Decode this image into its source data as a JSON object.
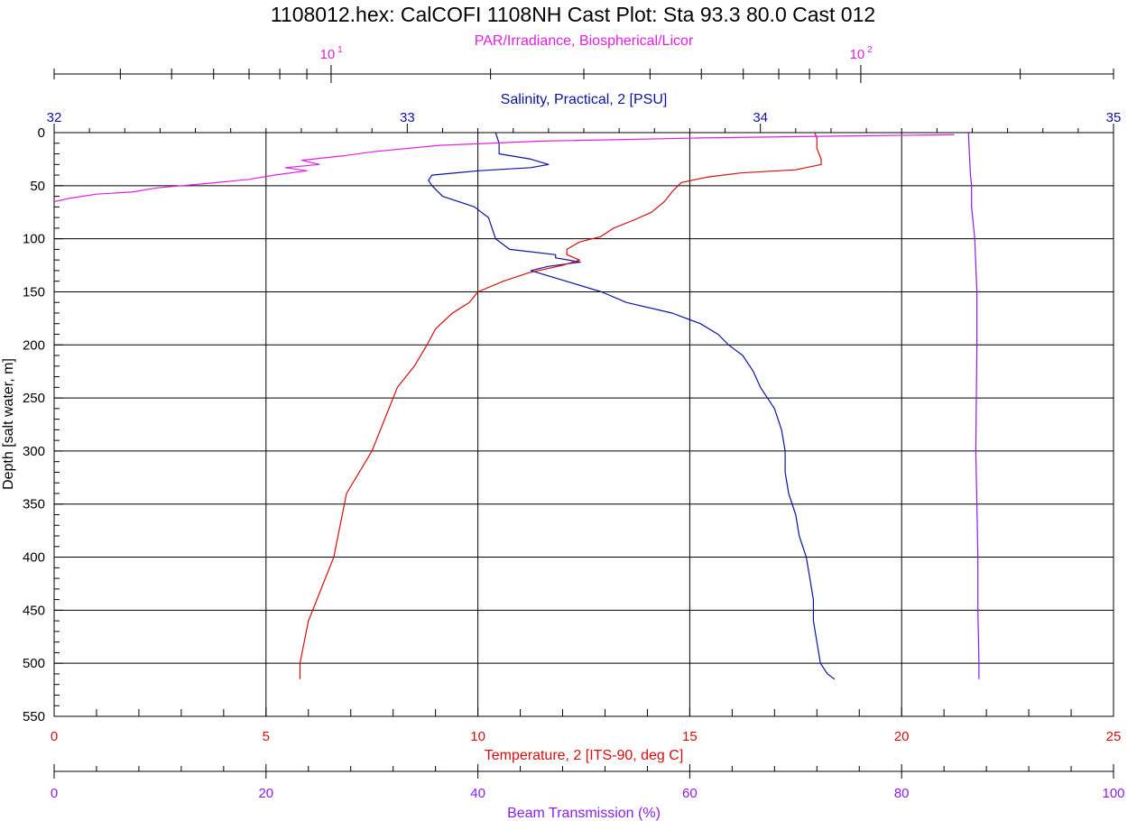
{
  "colors": {
    "black": "#000000",
    "salinity": "#0a14a0",
    "temperature": "#d40f0f",
    "par": "#e21ee2",
    "beam": "#8a1ee6"
  },
  "chart_data": {
    "type": "line",
    "title": "1108012.hex: CalCOFI 1108NH Cast Plot: Sta 93.3 80.0 Cast 012",
    "grid": true,
    "depth_axis": {
      "label": "Depth [salt water, m]",
      "range": [
        0,
        550
      ],
      "inverted": true,
      "ticks": [
        "0",
        "50",
        "100",
        "150",
        "200",
        "250",
        "300",
        "350",
        "400",
        "450",
        "500",
        "550"
      ]
    },
    "par_axis": {
      "label": "PAR/Irradiance, Biospherical/Licor",
      "scale": "log",
      "range": [
        3,
        300
      ],
      "tick_labels": [
        {
          "base": "10",
          "exp": "1",
          "value": 10
        },
        {
          "base": "10",
          "exp": "2",
          "value": 100
        }
      ]
    },
    "salinity_axis": {
      "label": "Salinity, Practical, 2 [PSU]",
      "range": [
        32,
        35
      ],
      "ticks": [
        "32",
        "33",
        "34",
        "35"
      ]
    },
    "temperature_axis": {
      "label": "Temperature, 2 [ITS-90, deg C]",
      "range": [
        0,
        25
      ],
      "ticks": [
        "0",
        "5",
        "10",
        "15",
        "20",
        "25"
      ]
    },
    "beam_axis": {
      "label": "Beam Transmission (%)",
      "range": [
        0,
        100
      ],
      "ticks": [
        "0",
        "20",
        "40",
        "60",
        "80",
        "100"
      ]
    },
    "series": [
      {
        "name": "Salinity, Practical, 2 [PSU]",
        "key": "salinity",
        "points": [
          [
            0,
            33.25
          ],
          [
            10,
            33.26
          ],
          [
            20,
            33.26
          ],
          [
            25,
            33.35
          ],
          [
            30,
            33.4
          ],
          [
            33,
            33.35
          ],
          [
            36,
            33.2
          ],
          [
            40,
            33.07
          ],
          [
            45,
            33.06
          ],
          [
            50,
            33.07
          ],
          [
            60,
            33.1
          ],
          [
            70,
            33.19
          ],
          [
            80,
            33.23
          ],
          [
            90,
            33.24
          ],
          [
            100,
            33.25
          ],
          [
            110,
            33.29
          ],
          [
            115,
            33.42
          ],
          [
            118,
            33.42
          ],
          [
            122,
            33.49
          ],
          [
            126,
            33.4
          ],
          [
            130,
            33.35
          ],
          [
            140,
            33.45
          ],
          [
            150,
            33.55
          ],
          [
            160,
            33.62
          ],
          [
            170,
            33.75
          ],
          [
            180,
            33.83
          ],
          [
            190,
            33.88
          ],
          [
            200,
            33.91
          ],
          [
            210,
            33.95
          ],
          [
            225,
            33.98
          ],
          [
            240,
            34.0
          ],
          [
            260,
            34.04
          ],
          [
            280,
            34.06
          ],
          [
            300,
            34.07
          ],
          [
            320,
            34.07
          ],
          [
            340,
            34.08
          ],
          [
            360,
            34.1
          ],
          [
            380,
            34.11
          ],
          [
            400,
            34.13
          ],
          [
            420,
            34.14
          ],
          [
            440,
            34.15
          ],
          [
            460,
            34.15
          ],
          [
            480,
            34.16
          ],
          [
            500,
            34.17
          ],
          [
            510,
            34.19
          ],
          [
            515,
            34.21
          ]
        ]
      },
      {
        "name": "Temperature, 2 [ITS-90, deg C]",
        "key": "temperature",
        "points": [
          [
            0,
            17.95
          ],
          [
            5,
            18.0
          ],
          [
            15,
            18.0
          ],
          [
            25,
            18.1
          ],
          [
            30,
            18.1
          ],
          [
            35,
            17.5
          ],
          [
            38,
            16.2
          ],
          [
            42,
            15.4
          ],
          [
            47,
            14.8
          ],
          [
            55,
            14.6
          ],
          [
            65,
            14.4
          ],
          [
            75,
            14.1
          ],
          [
            82,
            13.7
          ],
          [
            90,
            13.2
          ],
          [
            98,
            12.9
          ],
          [
            103,
            12.4
          ],
          [
            110,
            12.1
          ],
          [
            115,
            12.1
          ],
          [
            120,
            12.4
          ],
          [
            125,
            12.0
          ],
          [
            132,
            11.2
          ],
          [
            140,
            10.6
          ],
          [
            150,
            10.0
          ],
          [
            160,
            9.8
          ],
          [
            170,
            9.4
          ],
          [
            185,
            9.0
          ],
          [
            200,
            8.8
          ],
          [
            220,
            8.5
          ],
          [
            240,
            8.1
          ],
          [
            260,
            7.9
          ],
          [
            280,
            7.7
          ],
          [
            300,
            7.5
          ],
          [
            320,
            7.2
          ],
          [
            340,
            6.9
          ],
          [
            360,
            6.8
          ],
          [
            380,
            6.7
          ],
          [
            400,
            6.6
          ],
          [
            420,
            6.4
          ],
          [
            440,
            6.2
          ],
          [
            460,
            6.0
          ],
          [
            480,
            5.9
          ],
          [
            500,
            5.8
          ],
          [
            515,
            5.8
          ]
        ]
      },
      {
        "name": "PAR/Irradiance, Biospherical/Licor",
        "key": "par",
        "points": [
          [
            2,
            150
          ],
          [
            3,
            100
          ],
          [
            5,
            50
          ],
          [
            8,
            25
          ],
          [
            12,
            16
          ],
          [
            18,
            12
          ],
          [
            22,
            10.5
          ],
          [
            26,
            8.8
          ],
          [
            30,
            9.5
          ],
          [
            33,
            8.2
          ],
          [
            36,
            9.0
          ],
          [
            40,
            7.8
          ],
          [
            44,
            7.0
          ],
          [
            48,
            5.8
          ],
          [
            52,
            4.7
          ],
          [
            56,
            4.2
          ],
          [
            58,
            3.6
          ],
          [
            62,
            3.2
          ],
          [
            65,
            3.0
          ]
        ]
      },
      {
        "name": "Beam Transmission (%)",
        "key": "beam",
        "points": [
          [
            0,
            86.3
          ],
          [
            20,
            86.4
          ],
          [
            40,
            86.5
          ],
          [
            50,
            86.6
          ],
          [
            70,
            86.6
          ],
          [
            80,
            86.7
          ],
          [
            100,
            86.9
          ],
          [
            150,
            87.1
          ],
          [
            200,
            87.1
          ],
          [
            300,
            87.0
          ],
          [
            350,
            87.1
          ],
          [
            400,
            87.2
          ],
          [
            450,
            87.2
          ],
          [
            500,
            87.3
          ],
          [
            515,
            87.3
          ]
        ]
      }
    ]
  }
}
